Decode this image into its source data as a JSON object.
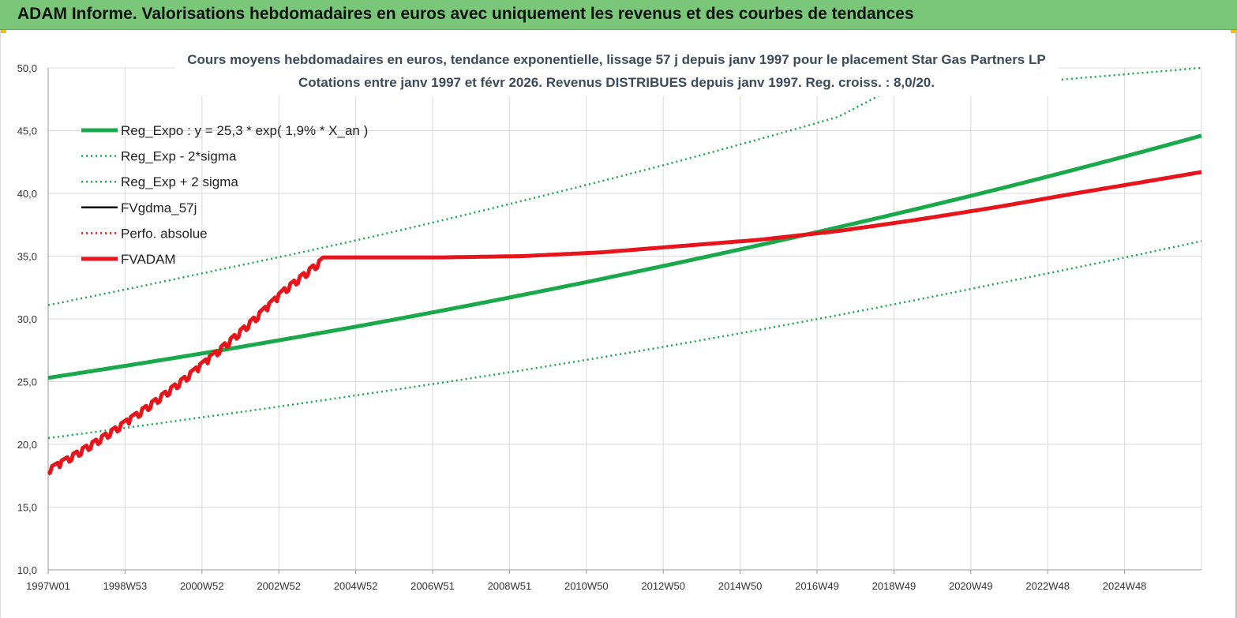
{
  "banner": {
    "title": "ADAM Informe. Valorisations hebdomadaires en euros avec uniquement les revenus et des courbes de tendances"
  },
  "colors": {
    "banner_bg": "#7ac77a",
    "green": "#19a84a",
    "red": "#e8141b",
    "black": "#000000",
    "grid": "#d9d9d9"
  },
  "chart_data": {
    "type": "line",
    "title": "Cours moyens hebdomadaires en euros, tendance exponentielle, lissage 57 j depuis janv 1997 pour le placement Star Gas Partners LP",
    "subtitle": "Cotations entre janv 1997 et févr 2026. Revenus DISTRIBUES depuis janv 1997. Reg. croiss. : 8,0/20.",
    "xlabel": "",
    "ylabel": "",
    "x_tick_labels": [
      "1997W01",
      "1998W53",
      "2000W52",
      "2002W52",
      "2004W52",
      "2006W51",
      "2008W51",
      "2010W50",
      "2012W50",
      "2014W50",
      "2016W49",
      "2018W49",
      "2020W49",
      "2022W48",
      "2024W48"
    ],
    "y_tick_labels": [
      "10,0",
      "15,0",
      "20,0",
      "25,0",
      "30,0",
      "35,0",
      "40,0",
      "45,0",
      "50,0"
    ],
    "ylim": [
      10,
      50
    ],
    "xlim_years": [
      1997.0,
      2026.2
    ],
    "grid": true,
    "legend_position": "top-left",
    "series": [
      {
        "name": "Reg_Expo : y = 25,3 * exp( 1,9% *  X_an )",
        "style": "solid-thick",
        "color": "#19a84a",
        "x": [
          1997.0,
          2001.0,
          2005.0,
          2009.0,
          2013.0,
          2017.0,
          2021.0,
          2026.2
        ],
        "y": [
          25.3,
          27.3,
          29.5,
          31.9,
          34.5,
          37.3,
          40.3,
          44.6
        ]
      },
      {
        "name": "Reg_Exp - 2*sigma",
        "style": "dotted",
        "color": "#19a84a",
        "x": [
          1997.0,
          2001.0,
          2005.0,
          2009.0,
          2013.0,
          2017.0,
          2021.0,
          2026.2
        ],
        "y": [
          20.5,
          22.2,
          24.0,
          25.9,
          28.0,
          30.3,
          32.8,
          36.2
        ]
      },
      {
        "name": "Reg_Exp + 2 sigma",
        "style": "dotted",
        "color": "#19a84a",
        "x": [
          1997.0,
          2001.0,
          2005.0,
          2009.0,
          2013.0,
          2017.0,
          2018.1,
          2026.2
        ],
        "y": [
          31.1,
          33.7,
          36.4,
          39.4,
          42.6,
          46.1,
          47.9,
          50.0
        ]
      },
      {
        "name": "FVgdma_57j",
        "style": "solid",
        "color": "#000000",
        "x": [],
        "y": []
      },
      {
        "name": "Perfo. absolue",
        "style": "dotted",
        "color": "#e8141b",
        "x": [],
        "y": []
      },
      {
        "name": "FVADAM",
        "style": "solid-thick",
        "color": "#e8141b",
        "x": [
          1997.0,
          1999.0,
          2001.0,
          2003.0,
          2004.0,
          2005.0,
          2007.0,
          2009.0,
          2011.0,
          2013.0,
          2015.0,
          2017.0,
          2019.0,
          2021.0,
          2023.0,
          2026.2
        ],
        "y": [
          18.0,
          21.9,
          26.7,
          32.4,
          34.9,
          34.9,
          34.9,
          35.0,
          35.3,
          35.8,
          36.3,
          37.0,
          37.9,
          38.9,
          40.0,
          41.7
        ]
      }
    ]
  }
}
